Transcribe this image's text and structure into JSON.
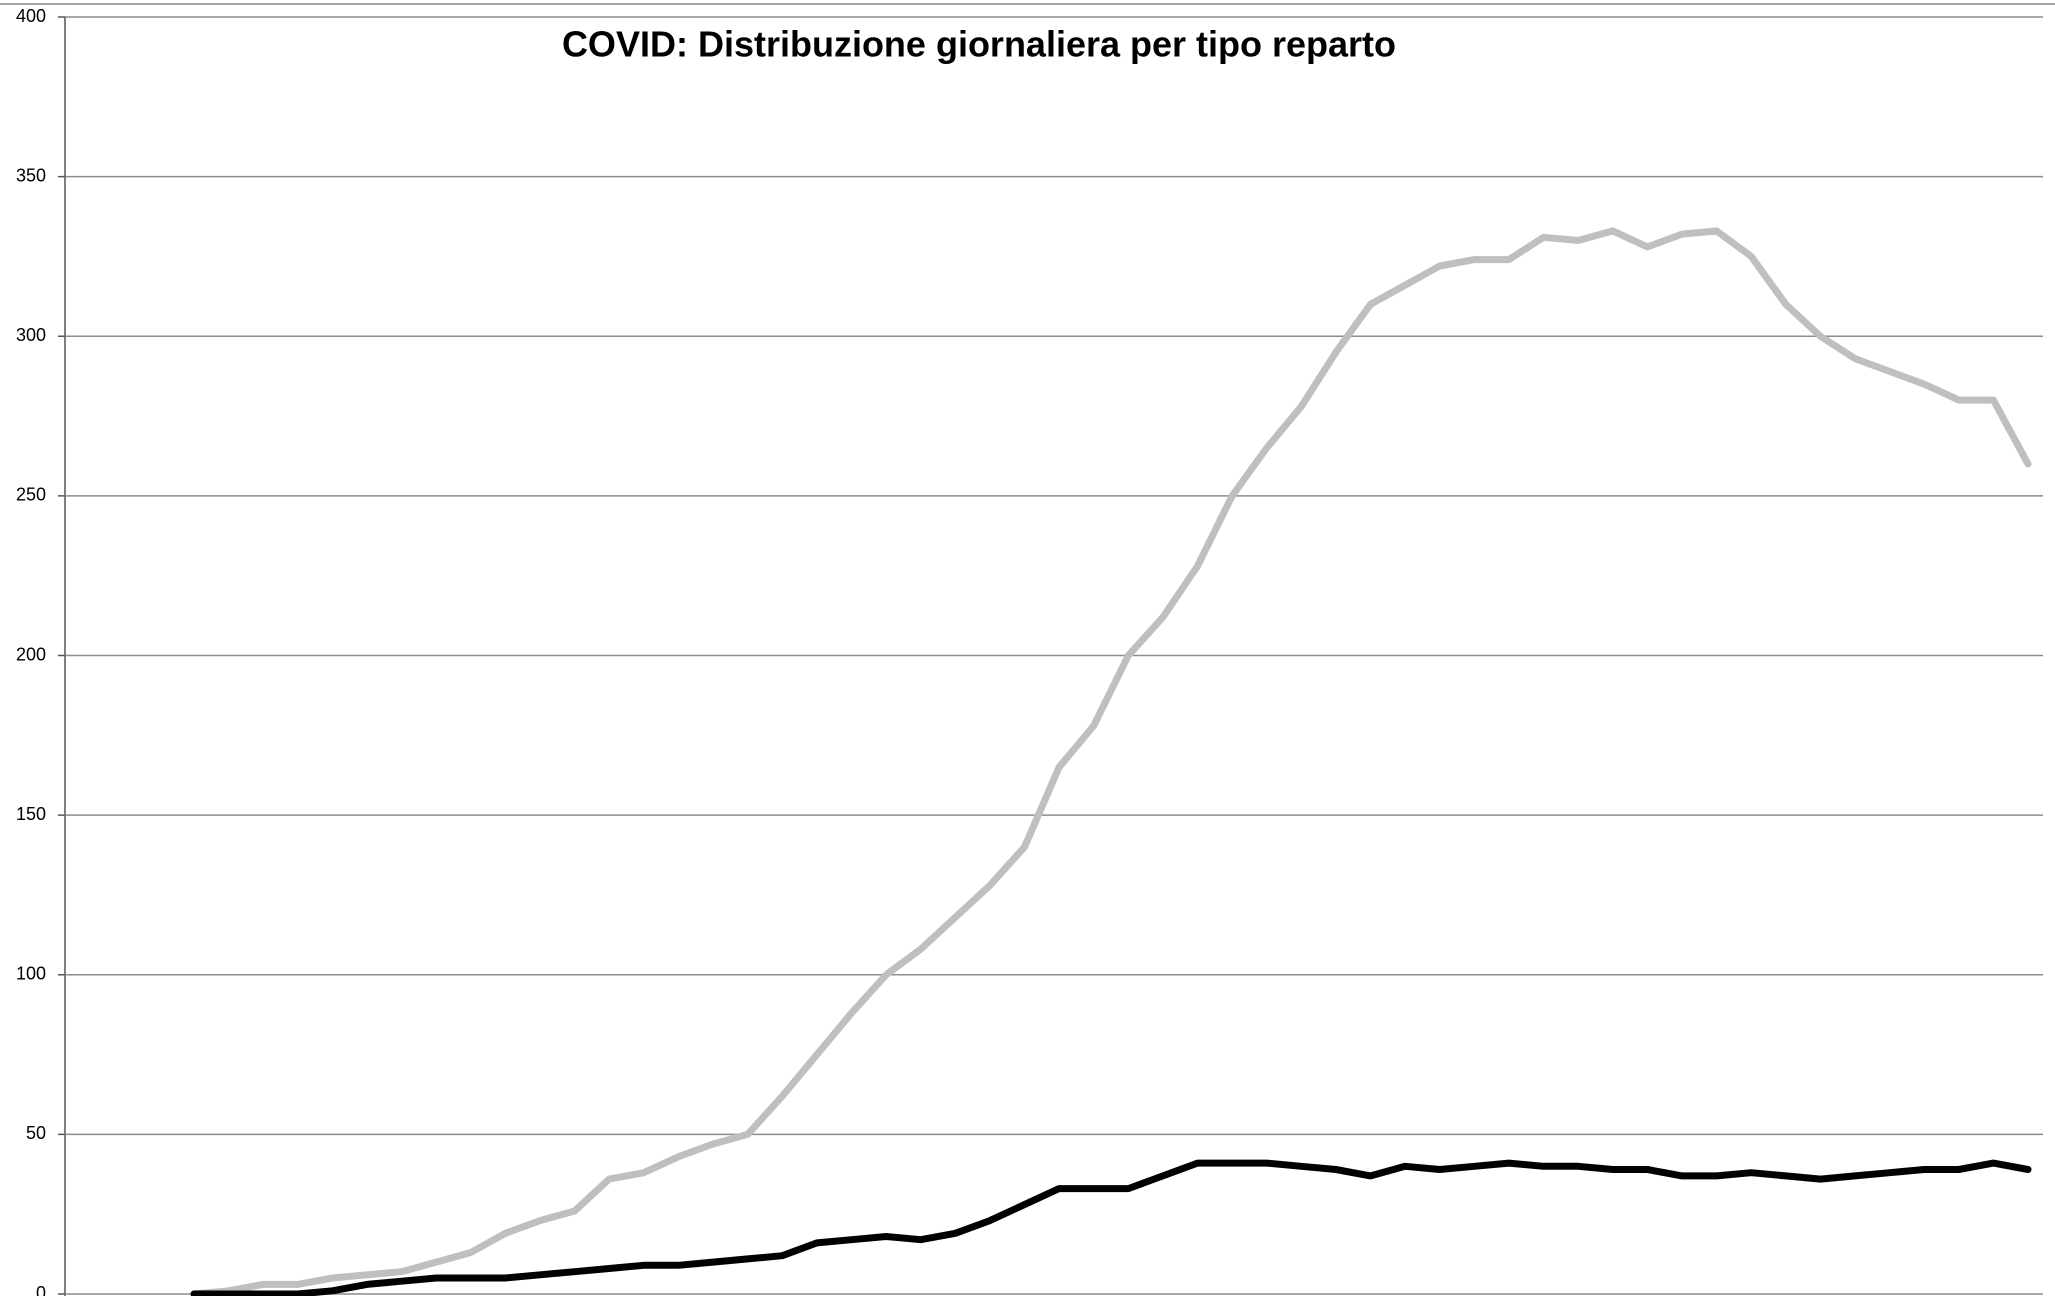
{
  "chart_data": {
    "type": "line",
    "title": "COVID: Distribuzione giornaliera per tipo reparto",
    "categories": [
      null,
      null,
      null,
      null,
      null,
      null,
      null,
      null,
      null,
      null,
      null,
      null,
      null,
      null,
      null,
      null,
      null,
      null,
      null,
      null,
      null,
      null,
      null,
      null,
      null,
      null,
      null,
      null,
      null,
      null,
      null,
      null,
      null,
      null,
      null,
      null,
      null,
      null,
      null,
      null,
      null,
      null,
      null,
      null,
      null,
      null,
      null,
      null,
      null,
      null,
      null,
      null,
      null,
      null
    ],
    "series": [
      {
        "color": "#bfbfbf",
        "values": [
          0,
          1,
          3,
          3,
          5,
          6,
          7,
          10,
          13,
          19,
          23,
          26,
          36,
          38,
          43,
          47,
          50,
          62,
          75,
          88,
          100,
          108,
          118,
          128,
          140,
          165,
          178,
          200,
          212,
          228,
          250,
          265,
          278,
          295,
          310,
          316,
          322,
          324,
          324,
          331,
          330,
          333,
          328,
          332,
          333,
          325,
          310,
          300,
          293,
          289,
          285,
          280,
          280,
          260
        ]
      },
      {
        "color": "#000000",
        "values": [
          0,
          0,
          0,
          0,
          1,
          3,
          4,
          5,
          5,
          5,
          6,
          7,
          8,
          9,
          9,
          10,
          11,
          12,
          16,
          17,
          18,
          17,
          19,
          23,
          28,
          33,
          33,
          33,
          37,
          41,
          41,
          41,
          40,
          39,
          37,
          40,
          39,
          40,
          41,
          40,
          40,
          39,
          39,
          37,
          37,
          38,
          37,
          36,
          37,
          38,
          39,
          39,
          41,
          39
        ]
      }
    ],
    "ylim": [
      0,
      400
    ],
    "yticks": [
      0,
      50,
      100,
      150,
      200,
      250,
      300,
      350,
      400
    ],
    "grid": true
  }
}
